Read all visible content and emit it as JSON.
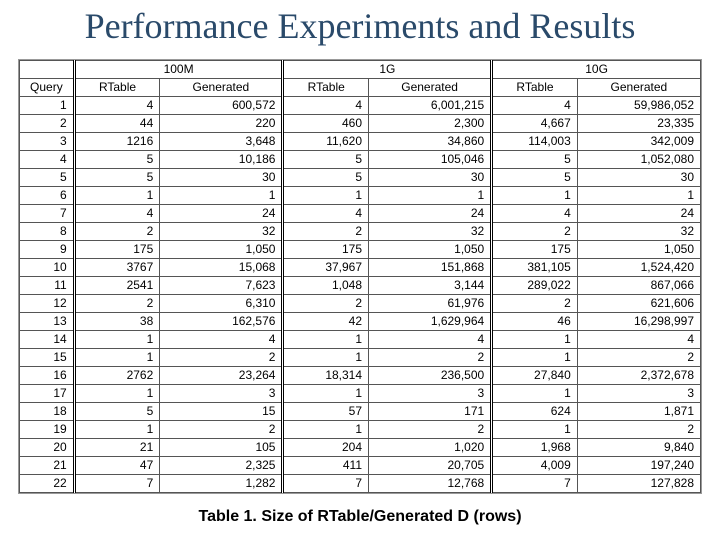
{
  "title": "Performance Experiments and Results",
  "caption": "Table 1. Size of RTable/Generated D (rows)",
  "table": {
    "type": "table",
    "groups": [
      "100M",
      "1G",
      "10G"
    ],
    "subheaders": [
      "Query",
      "RTable",
      "Generated",
      "RTable",
      "Generated",
      "RTable",
      "Generated"
    ],
    "columns_align": [
      "right",
      "right",
      "right",
      "right",
      "right",
      "right",
      "right"
    ],
    "border_color": "#555555",
    "background_color": "#ffffff",
    "font_size": 12,
    "rows": [
      [
        "1",
        "4",
        "600,572",
        "4",
        "6,001,215",
        "4",
        "59,986,052"
      ],
      [
        "2",
        "44",
        "220",
        "460",
        "2,300",
        "4,667",
        "23,335"
      ],
      [
        "3",
        "1216",
        "3,648",
        "11,620",
        "34,860",
        "114,003",
        "342,009"
      ],
      [
        "4",
        "5",
        "10,186",
        "5",
        "105,046",
        "5",
        "1,052,080"
      ],
      [
        "5",
        "5",
        "30",
        "5",
        "30",
        "5",
        "30"
      ],
      [
        "6",
        "1",
        "1",
        "1",
        "1",
        "1",
        "1"
      ],
      [
        "7",
        "4",
        "24",
        "4",
        "24",
        "4",
        "24"
      ],
      [
        "8",
        "2",
        "32",
        "2",
        "32",
        "2",
        "32"
      ],
      [
        "9",
        "175",
        "1,050",
        "175",
        "1,050",
        "175",
        "1,050"
      ],
      [
        "10",
        "3767",
        "15,068",
        "37,967",
        "151,868",
        "381,105",
        "1,524,420"
      ],
      [
        "11",
        "2541",
        "7,623",
        "1,048",
        "3,144",
        "289,022",
        "867,066"
      ],
      [
        "12",
        "2",
        "6,310",
        "2",
        "61,976",
        "2",
        "621,606"
      ],
      [
        "13",
        "38",
        "162,576",
        "42",
        "1,629,964",
        "46",
        "16,298,997"
      ],
      [
        "14",
        "1",
        "4",
        "1",
        "4",
        "1",
        "4"
      ],
      [
        "15",
        "1",
        "2",
        "1",
        "2",
        "1",
        "2"
      ],
      [
        "16",
        "2762",
        "23,264",
        "18,314",
        "236,500",
        "27,840",
        "2,372,678"
      ],
      [
        "17",
        "1",
        "3",
        "1",
        "3",
        "1",
        "3"
      ],
      [
        "18",
        "5",
        "15",
        "57",
        "171",
        "624",
        "1,871"
      ],
      [
        "19",
        "1",
        "2",
        "1",
        "2",
        "1",
        "2"
      ],
      [
        "20",
        "21",
        "105",
        "204",
        "1,020",
        "1,968",
        "9,840"
      ],
      [
        "21",
        "47",
        "2,325",
        "411",
        "20,705",
        "4,009",
        "197,240"
      ],
      [
        "22",
        "7",
        "1,282",
        "7",
        "12,768",
        "7",
        "127,828"
      ]
    ]
  },
  "colors": {
    "title_color": "#2a4a6a",
    "text_color": "#000000",
    "background": "#ffffff"
  }
}
